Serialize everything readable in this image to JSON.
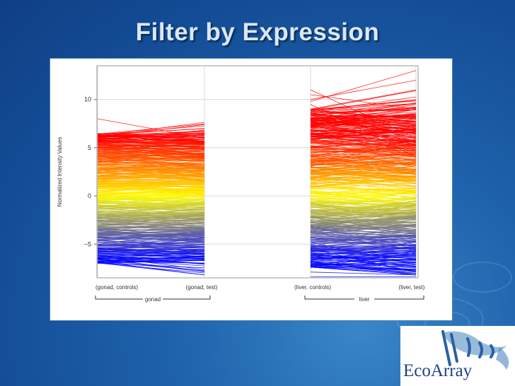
{
  "slide": {
    "title": "Filter by Expression"
  },
  "logo": {
    "text": "EcoArray",
    "icon": "fish-logo-icon"
  },
  "chart_data": {
    "type": "line",
    "title": "",
    "ylabel": "Normalized Intensity Values",
    "ylim": [
      -8.5,
      13.5
    ],
    "yticks": [
      -5,
      0,
      5,
      10
    ],
    "categories": [
      "(gonad, controls)",
      "(gonad, test)",
      "(liver, controls)",
      "(liver, test)"
    ],
    "groups": [
      {
        "label": "gonad",
        "categories": [
          0,
          1
        ]
      },
      {
        "label": "liver",
        "categories": [
          2,
          3
        ]
      }
    ],
    "grid": true,
    "color_scale": {
      "low": "#0000ff",
      "mid": "#ffff00",
      "high": "#ff0000"
    },
    "series_summary": [
      {
        "group": "gonad",
        "controls_range": [
          -7,
          8
        ],
        "test_range": [
          -8.2,
          7
        ]
      },
      {
        "group": "liver",
        "controls_range": [
          -8.5,
          11
        ],
        "test_range": [
          -8.5,
          13
        ]
      }
    ]
  }
}
